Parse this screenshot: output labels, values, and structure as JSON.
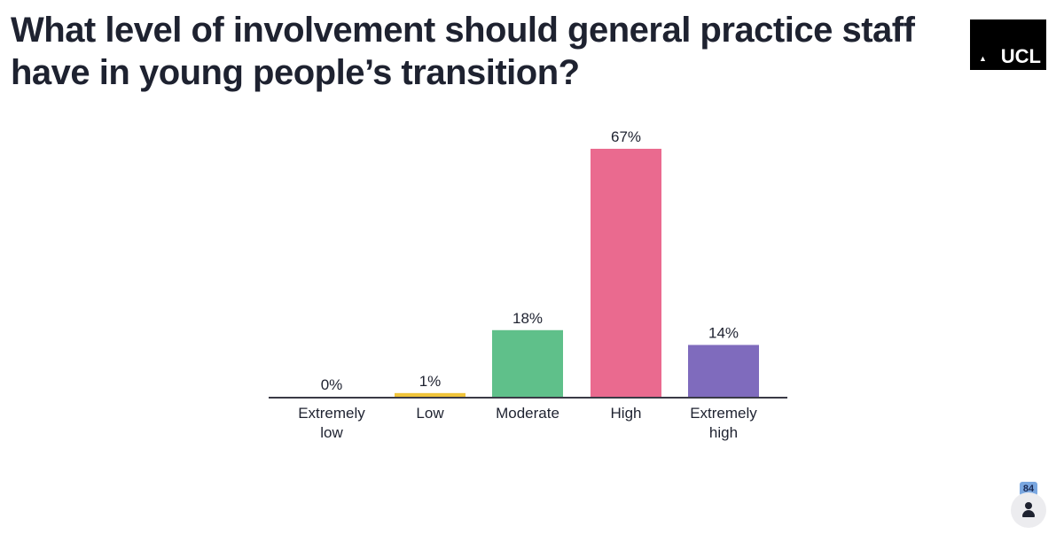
{
  "title": "What level of involvement should general practice staff have in young people’s transition?",
  "logo": {
    "text": "UCL"
  },
  "participants": {
    "count": "84",
    "icon": "person-icon"
  },
  "chart_data": {
    "type": "bar",
    "categories": [
      [
        "Extremely",
        "low"
      ],
      [
        "Low"
      ],
      [
        "Moderate"
      ],
      [
        "High"
      ],
      [
        "Extremely",
        "high"
      ]
    ],
    "values": [
      0,
      1,
      18,
      67,
      14
    ],
    "value_labels": [
      "0%",
      "1%",
      "18%",
      "67%",
      "14%"
    ],
    "colors": [
      "#cfcfd6",
      "#f0c43a",
      "#5fc08a",
      "#ea6a8f",
      "#7f6bbd"
    ],
    "ylim": [
      0,
      67
    ],
    "grid": false
  }
}
